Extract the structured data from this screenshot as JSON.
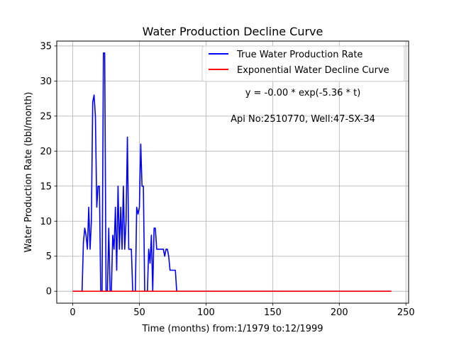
{
  "chart_data": {
    "type": "line",
    "title": "Water Production Decline Curve",
    "xlabel": "Time (months) from:1/1979 to:12/1999",
    "ylabel": "Water Production Rate (bbl/month)",
    "xlim": [
      -12,
      252
    ],
    "ylim": [
      -1.7,
      35.7
    ],
    "xticks": [
      0,
      50,
      100,
      150,
      200,
      250
    ],
    "yticks": [
      0,
      5,
      10,
      15,
      20,
      25,
      30,
      35
    ],
    "grid": true,
    "legend_position": "top-right",
    "annotations": [
      "y = -0.00 * exp(-5.36 * t)",
      "Api No:2510770, Well:47-SX-34"
    ],
    "series": [
      {
        "name": "True Water Production Rate",
        "color": "#0000ff",
        "x": [
          0,
          1,
          2,
          3,
          4,
          5,
          6,
          7,
          8,
          9,
          10,
          11,
          12,
          13,
          14,
          15,
          16,
          17,
          18,
          19,
          20,
          21,
          22,
          23,
          24,
          25,
          26,
          27,
          28,
          29,
          30,
          31,
          32,
          33,
          34,
          35,
          36,
          37,
          38,
          39,
          40,
          41,
          42,
          43,
          44,
          45,
          46,
          47,
          48,
          49,
          50,
          51,
          52,
          53,
          54,
          55,
          56,
          57,
          58,
          59,
          60,
          61,
          62,
          63,
          64,
          65,
          66,
          67,
          68,
          69,
          70,
          71,
          72,
          73,
          74,
          75,
          76,
          77,
          78,
          79,
          239
        ],
        "y": [
          0,
          0,
          0,
          0,
          0,
          0,
          0,
          0,
          7,
          9,
          8,
          6,
          12,
          6,
          10,
          27,
          28,
          25,
          12,
          15,
          15,
          0,
          0,
          34,
          34,
          0,
          0,
          9,
          0,
          0,
          8,
          6,
          12,
          3,
          15,
          6,
          12,
          6,
          15,
          6,
          10,
          22,
          6,
          6,
          6,
          0,
          0,
          0,
          12,
          11,
          12,
          21,
          15,
          15,
          0,
          0,
          0,
          6,
          4,
          8,
          0,
          9,
          9,
          6,
          6,
          6,
          6,
          6,
          6,
          5,
          6,
          6,
          5,
          3,
          3,
          3,
          3,
          3,
          0,
          0,
          0
        ]
      },
      {
        "name": "Exponential Water Decline Curve",
        "color": "#ff0000",
        "x": [
          0,
          239
        ],
        "y": [
          0,
          0
        ]
      }
    ]
  }
}
